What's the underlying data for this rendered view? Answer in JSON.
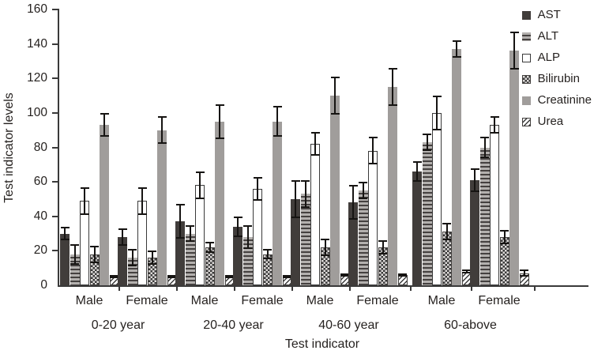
{
  "chart_data": {
    "type": "bar",
    "title": "",
    "ylabel": "Test indicator levels",
    "xlabel": "Test indicator",
    "ylim": [
      0,
      160
    ],
    "ytick_step": 20,
    "grid": false,
    "legend_position": "top-right",
    "error_bars": true,
    "colors": {
      "axis": "#3a3a3a",
      "ast": "#413d3b",
      "creatinine": "#a09d9b",
      "error_bar": "#161412",
      "text": "#262220"
    },
    "series": [
      {
        "name": "AST",
        "pattern": "solid-dark"
      },
      {
        "name": "ALT",
        "pattern": "horizontal-stripes"
      },
      {
        "name": "ALP",
        "pattern": "white-outline"
      },
      {
        "name": "Bilirubin",
        "pattern": "checker"
      },
      {
        "name": "Creatinine",
        "pattern": "solid-gray"
      },
      {
        "name": "Urea",
        "pattern": "diagonal-stripes"
      }
    ],
    "groups": [
      {
        "label": "0-20 year",
        "clusters": [
          {
            "label": "Male",
            "values": [
              30,
              18,
              49,
              18,
              93,
              5
            ],
            "errors": [
              4,
              6,
              8,
              5,
              7,
              1
            ]
          },
          {
            "label": "Female",
            "values": [
              28,
              16,
              49,
              16,
              90,
              5
            ],
            "errors": [
              5,
              5,
              8,
              4,
              8,
              1
            ]
          }
        ]
      },
      {
        "label": "20-40 year",
        "clusters": [
          {
            "label": "Male",
            "values": [
              37,
              30,
              58,
              22,
              95,
              5
            ],
            "errors": [
              10,
              5,
              8,
              3,
              10,
              1
            ]
          },
          {
            "label": "Female",
            "values": [
              34,
              28,
              56,
              18,
              95,
              5
            ],
            "errors": [
              6,
              7,
              7,
              3,
              9,
              1
            ]
          }
        ]
      },
      {
        "label": "40-60 year",
        "clusters": [
          {
            "label": "Male",
            "values": [
              50,
              53,
              82,
              22,
              110,
              6
            ],
            "errors": [
              11,
              8,
              7,
              5,
              11,
              1
            ]
          },
          {
            "label": "Female",
            "values": [
              48,
              55,
              78,
              22,
              115,
              6
            ],
            "errors": [
              10,
              5,
              8,
              4,
              11,
              1
            ]
          }
        ]
      },
      {
        "label": "60-above",
        "clusters": [
          {
            "label": "Male",
            "values": [
              66,
              83,
              100,
              31,
              137,
              8
            ],
            "errors": [
              6,
              5,
              10,
              5,
              5,
              1
            ]
          },
          {
            "label": "Female",
            "values": [
              61,
              80,
              93,
              28,
              136,
              7
            ],
            "errors": [
              7,
              6,
              5,
              4,
              11,
              2
            ]
          }
        ]
      }
    ]
  }
}
